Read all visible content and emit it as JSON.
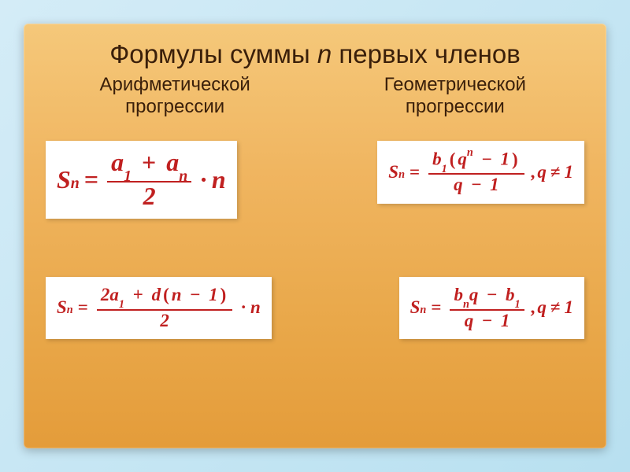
{
  "title_prefix": "Формулы суммы ",
  "title_italic": "n",
  "title_suffix": " первых членов",
  "left_heading_line1": "Арифметической",
  "left_heading_line2": "прогрессии",
  "right_heading_line1": "Геометрической",
  "right_heading_line2": "прогрессии",
  "formulas": {
    "arith1": {
      "lhs_base": "S",
      "lhs_sub": "n",
      "num_a": "a",
      "num_sub1": "1",
      "num_plus": "+",
      "num_b": "a",
      "num_sub2": "n",
      "den": "2",
      "tail_dot": "·",
      "tail_var": "n"
    },
    "geom1": {
      "lhs_base": "S",
      "lhs_sub": "n",
      "num_b": "b",
      "num_sub1": "1",
      "num_lp": "(",
      "num_q": "q",
      "num_sup": "n",
      "num_minus": "−",
      "num_one": "1",
      "num_rp": ")",
      "den_q": "q",
      "den_minus": "−",
      "den_one": "1",
      "cond_comma": ",",
      "cond_q": "q",
      "cond_ne": "≠",
      "cond_one": "1"
    },
    "arith2": {
      "lhs_base": "S",
      "lhs_sub": "n",
      "num_two": "2",
      "num_a": "a",
      "num_sub1": "1",
      "num_plus": "+",
      "num_d": "d",
      "num_lp": "(",
      "num_n": "n",
      "num_minus": "−",
      "num_one": "1",
      "num_rp": ")",
      "den": "2",
      "tail_dot": "·",
      "tail_var": "n"
    },
    "geom2": {
      "lhs_base": "S",
      "lhs_sub": "n",
      "num_bn": "b",
      "num_subn": "n",
      "num_q": "q",
      "num_minus": "−",
      "num_b1": "b",
      "num_sub1": "1",
      "den_q": "q",
      "den_minus": "−",
      "den_one": "1",
      "cond_comma": ",",
      "cond_q": "q",
      "cond_ne": "≠",
      "cond_one": "1"
    }
  },
  "style": {
    "formula_color": "#c02020",
    "text_color": "#3a1f0a",
    "slide_gradient_top": "#f5c87a",
    "slide_gradient_bottom": "#e49c3a",
    "bg_gradient_top": "#d4ecf7",
    "bg_gradient_bottom": "#b8e0f0",
    "formula_box_bg": "#ffffff",
    "title_fontsize": 33,
    "subheading_fontsize": 24,
    "formula_large_fontsize": 32,
    "formula_med_fontsize": 23
  }
}
